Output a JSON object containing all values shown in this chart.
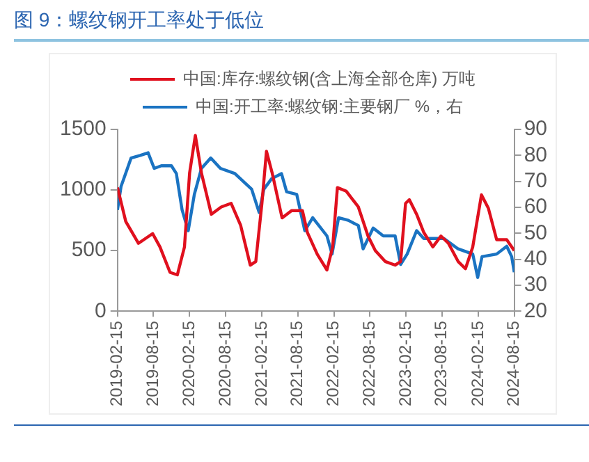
{
  "chart_data": {
    "type": "line",
    "title": "图 9：螺纹钢开工率处于低位",
    "xlim": [
      "2019-02-15",
      "2024-08-15"
    ],
    "xticks": [
      "2019-02-15",
      "2019-08-15",
      "2020-02-15",
      "2020-08-15",
      "2021-02-15",
      "2021-08-15",
      "2022-02-15",
      "2022-08-15",
      "2023-02-15",
      "2023-08-15",
      "2024-02-15",
      "2024-08-15"
    ],
    "ylim": [
      0,
      1500
    ],
    "yticks": [
      0,
      500,
      1000,
      1500
    ],
    "y2lim": [
      20,
      90
    ],
    "y2ticks": [
      20,
      30,
      40,
      50,
      60,
      70,
      80,
      90
    ],
    "grid": false,
    "legend": "top",
    "marker": "none",
    "line_style": "solid",
    "series": [
      {
        "name": "中国:库存:螺纹钢(含上海全部仓库) 万吨",
        "color": "#e0101e",
        "x": [
          "2019-02-15",
          "2019-03-29",
          "2019-06-01",
          "2019-08-12",
          "2019-09-18",
          "2019-11-08",
          "2019-12-15",
          "2020-01-20",
          "2020-02-15",
          "2020-03-15",
          "2020-04-15",
          "2020-06-04",
          "2020-07-24",
          "2020-09-12",
          "2020-10-30",
          "2020-12-18",
          "2021-01-15",
          "2021-02-15",
          "2021-03-10",
          "2021-04-08",
          "2021-05-28",
          "2021-07-15",
          "2021-09-08",
          "2021-10-03",
          "2021-11-22",
          "2022-01-10",
          "2022-02-08",
          "2022-03-04",
          "2022-04-18",
          "2022-06-18",
          "2022-08-06",
          "2022-09-12",
          "2022-11-01",
          "2022-12-21",
          "2023-01-18",
          "2023-02-12",
          "2023-03-03",
          "2023-04-09",
          "2023-05-15",
          "2023-06-30",
          "2023-08-10",
          "2023-09-17",
          "2023-11-05",
          "2023-12-12",
          "2024-01-18",
          "2024-03-02",
          "2024-04-06",
          "2024-05-18",
          "2024-07-08",
          "2024-08-15"
        ],
        "values": [
          1020,
          740,
          560,
          640,
          530,
          320,
          300,
          530,
          1140,
          1450,
          1140,
          800,
          860,
          890,
          710,
          380,
          410,
          890,
          1320,
          1140,
          770,
          830,
          830,
          650,
          470,
          340,
          530,
          1020,
          990,
          860,
          620,
          500,
          410,
          380,
          410,
          890,
          920,
          800,
          650,
          530,
          620,
          560,
          410,
          350,
          530,
          960,
          850,
          590,
          590,
          500
        ]
      },
      {
        "name": "中国:开工率:螺纹钢:主要钢厂 %，右",
        "color": "#1a73c2",
        "axis": "y2",
        "x": [
          "2019-02-15",
          "2019-03-05",
          "2019-04-25",
          "2019-06-10",
          "2019-07-20",
          "2019-08-20",
          "2019-09-25",
          "2019-11-15",
          "2019-12-10",
          "2020-01-08",
          "2020-02-08",
          "2020-03-10",
          "2020-04-15",
          "2020-06-01",
          "2020-07-20",
          "2020-10-01",
          "2020-12-25",
          "2021-02-01",
          "2021-02-25",
          "2021-04-05",
          "2021-05-25",
          "2021-06-20",
          "2021-08-10",
          "2021-09-20",
          "2021-10-30",
          "2022-01-10",
          "2022-02-05",
          "2022-03-10",
          "2022-04-28",
          "2022-06-18",
          "2022-07-12",
          "2022-09-01",
          "2022-10-22",
          "2022-12-21",
          "2023-01-18",
          "2023-02-20",
          "2023-04-09",
          "2023-05-15",
          "2023-08-25",
          "2023-11-05",
          "2024-01-18",
          "2024-02-12",
          "2024-03-05",
          "2024-05-18",
          "2024-07-08",
          "2024-08-02",
          "2024-08-15"
        ],
        "values": [
          59,
          68,
          79,
          80,
          81,
          75,
          76,
          76,
          73,
          59,
          51,
          65,
          75,
          79,
          75,
          73,
          67,
          58,
          67,
          71,
          73,
          66,
          65,
          51,
          56,
          49,
          42,
          56,
          55,
          53,
          44,
          52,
          49,
          49,
          38,
          42,
          51,
          48,
          48,
          44,
          42,
          33,
          41,
          42,
          45,
          41,
          35
        ]
      }
    ]
  }
}
